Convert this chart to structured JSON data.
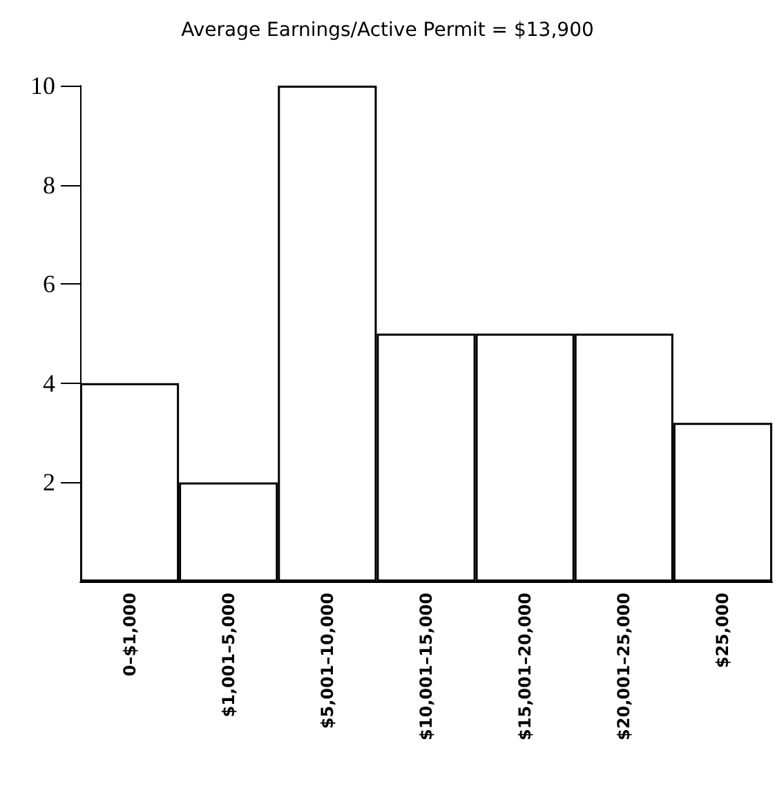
{
  "chart_data": {
    "type": "bar",
    "title": "Average Earnings/Active Permit = $13,900",
    "categories": [
      "0–$1,000",
      "$1,001–5,000",
      "$5,001–10,000",
      "$10,001–15,000",
      "$15,001–20,000",
      "$20,001–25,000",
      "$25,000"
    ],
    "values": [
      4,
      2,
      10,
      5,
      5,
      5,
      3.2
    ],
    "color": "#ffffff",
    "ylim": [
      0,
      10
    ],
    "yticks": [
      2,
      4,
      6,
      8,
      10
    ],
    "grid": false
  }
}
